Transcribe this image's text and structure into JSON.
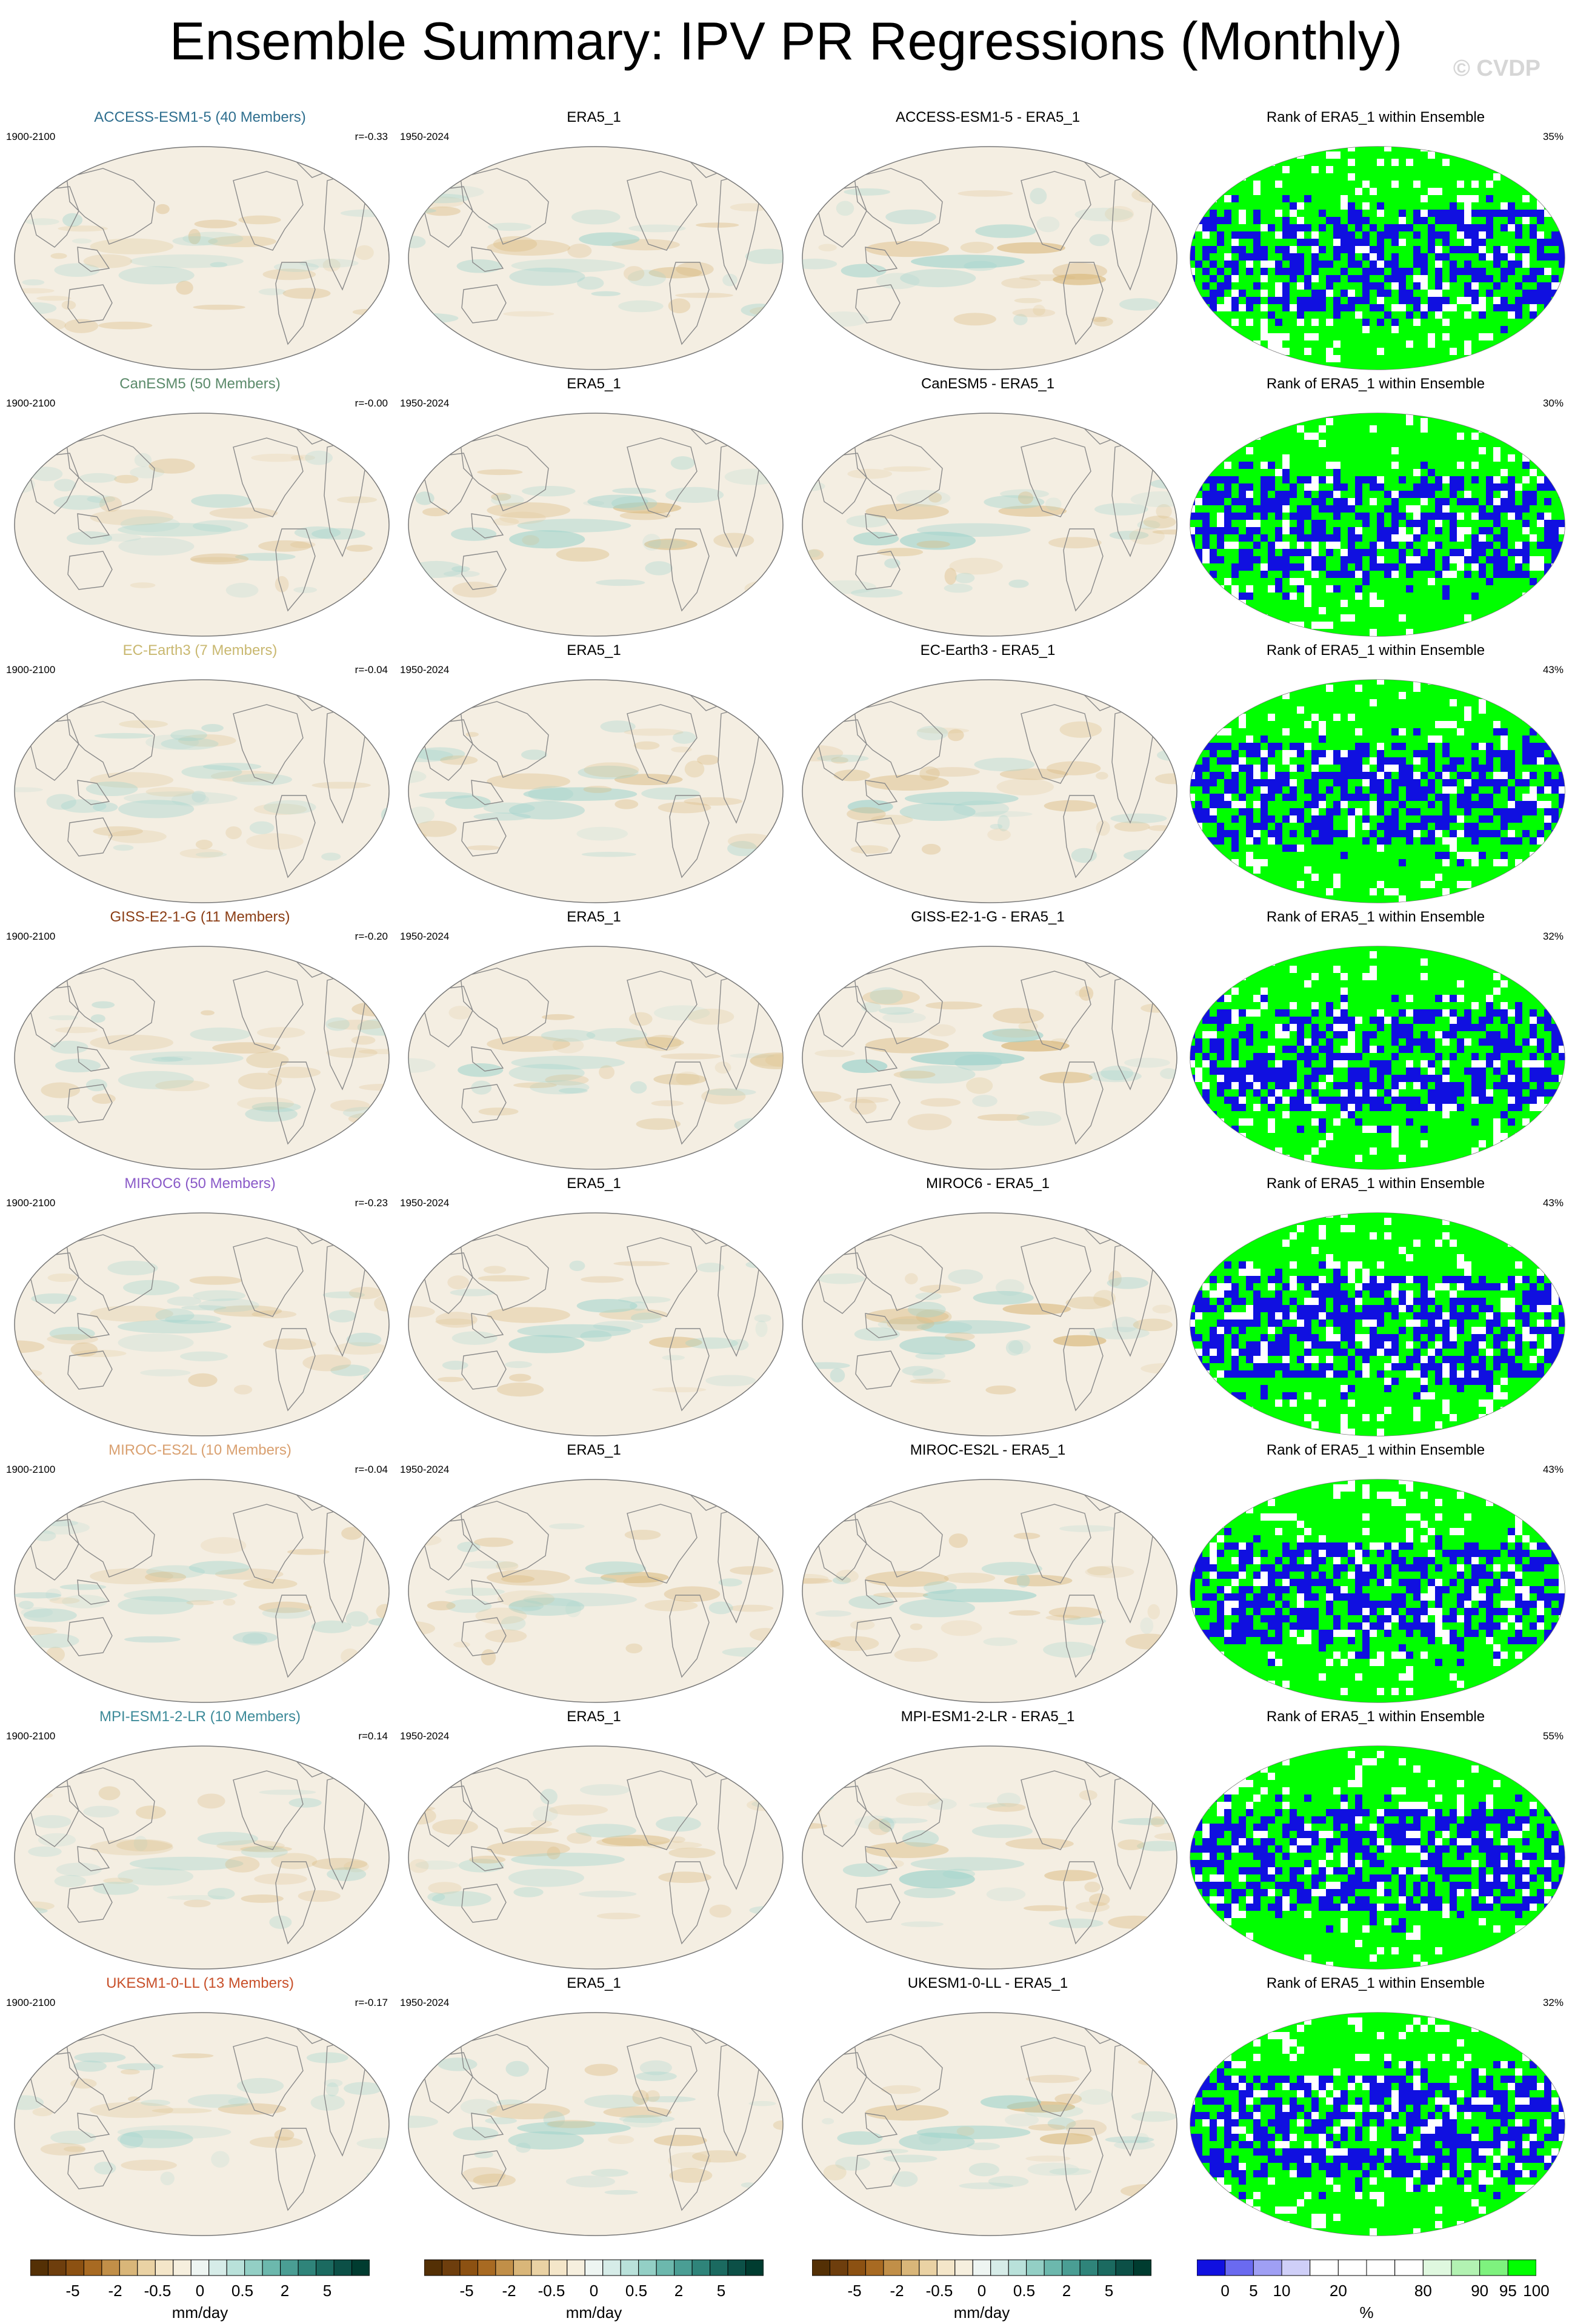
{
  "title": "Ensemble Summary: IPV PR Regressions (Monthly)",
  "watermark": "© CVDP",
  "colors": {
    "ocean": "#f4eee2",
    "land_edge": "#8a8a8a",
    "dry_strong": "#7a4a12",
    "dry": "#d9b87c",
    "wet": "#9fd3cc",
    "wet_strong": "#2b7c74",
    "rank_low": "#1010e0",
    "rank_high": "#00ff00"
  },
  "rows": [
    {
      "model_title": "ACCESS-ESM1-5 (40 Members)",
      "model_color": "#2f6f8f",
      "period": "1900-2100",
      "r": "r=-0.33",
      "obs_title": "ERA5_1",
      "obs_period": "1950-2024",
      "diff_title": "ACCESS-ESM1-5 - ERA5_1",
      "rank_title": "Rank of ERA5_1 within Ensemble",
      "rank_pct": "35%"
    },
    {
      "model_title": "CanESM5 (50 Members)",
      "model_color": "#5b8a6a",
      "period": "1900-2100",
      "r": "r=-0.00",
      "obs_title": "ERA5_1",
      "obs_period": "1950-2024",
      "diff_title": "CanESM5 - ERA5_1",
      "rank_title": "Rank of ERA5_1 within Ensemble",
      "rank_pct": "30%"
    },
    {
      "model_title": "EC-Earth3 (7 Members)",
      "model_color": "#c9b870",
      "period": "1900-2100",
      "r": "r=-0.04",
      "obs_title": "ERA5_1",
      "obs_period": "1950-2024",
      "diff_title": "EC-Earth3 - ERA5_1",
      "rank_title": "Rank of ERA5_1 within Ensemble",
      "rank_pct": "43%"
    },
    {
      "model_title": "GISS-E2-1-G (11 Members)",
      "model_color": "#8a3d14",
      "period": "1900-2100",
      "r": "r=-0.20",
      "obs_title": "ERA5_1",
      "obs_period": "1950-2024",
      "diff_title": "GISS-E2-1-G - ERA5_1",
      "rank_title": "Rank of ERA5_1 within Ensemble",
      "rank_pct": "32%"
    },
    {
      "model_title": "MIROC6 (50 Members)",
      "model_color": "#8a5ac8",
      "period": "1900-2100",
      "r": "r=-0.23",
      "obs_title": "ERA5_1",
      "obs_period": "1950-2024",
      "diff_title": "MIROC6 - ERA5_1",
      "rank_title": "Rank of ERA5_1 within Ensemble",
      "rank_pct": "43%"
    },
    {
      "model_title": "MIROC-ES2L (10 Members)",
      "model_color": "#d9a070",
      "period": "1900-2100",
      "r": "r=-0.04",
      "obs_title": "ERA5_1",
      "obs_period": "1950-2024",
      "diff_title": "MIROC-ES2L - ERA5_1",
      "rank_title": "Rank of ERA5_1 within Ensemble",
      "rank_pct": "43%"
    },
    {
      "model_title": "MPI-ESM1-2-LR (10 Members)",
      "model_color": "#3d8a99",
      "period": "1900-2100",
      "r": "r=0.14",
      "obs_title": "ERA5_1",
      "obs_period": "1950-2024",
      "diff_title": "MPI-ESM1-2-LR - ERA5_1",
      "rank_title": "Rank of ERA5_1 within Ensemble",
      "rank_pct": "55%"
    },
    {
      "model_title": "UKESM1-0-LL (13 Members)",
      "model_color": "#c8502a",
      "period": "1900-2100",
      "r": "r=-0.17",
      "obs_title": "ERA5_1",
      "obs_period": "1950-2024",
      "diff_title": "UKESM1-0-LL - ERA5_1",
      "rank_title": "Rank of ERA5_1 within Ensemble",
      "rank_pct": "32%"
    }
  ],
  "colorbars": [
    {
      "units": "mm/day",
      "ticks": [
        "-5",
        "-2",
        "-0.5",
        "0",
        "0.5",
        "2",
        "5"
      ],
      "swatches": [
        "#543005",
        "#6e3e0d",
        "#8c5112",
        "#a86a22",
        "#c18f48",
        "#d9b679",
        "#ead2a4",
        "#f4e6c9",
        "#f6efde",
        "#eef5f2",
        "#d6ece8",
        "#b9e1da",
        "#93cfc5",
        "#6cb8ad",
        "#4a9e94",
        "#2f847a",
        "#1b6a60",
        "#0c5047",
        "#003c30"
      ]
    },
    {
      "units": "mm/day",
      "ticks": [
        "-5",
        "-2",
        "-0.5",
        "0",
        "0.5",
        "2",
        "5"
      ],
      "swatches": [
        "#543005",
        "#6e3e0d",
        "#8c5112",
        "#a86a22",
        "#c18f48",
        "#d9b679",
        "#ead2a4",
        "#f4e6c9",
        "#f6efde",
        "#eef5f2",
        "#d6ece8",
        "#b9e1da",
        "#93cfc5",
        "#6cb8ad",
        "#4a9e94",
        "#2f847a",
        "#1b6a60",
        "#0c5047",
        "#003c30"
      ]
    },
    {
      "units": "mm/day",
      "ticks": [
        "-5",
        "-2",
        "-0.5",
        "0",
        "0.5",
        "2",
        "5"
      ],
      "swatches": [
        "#543005",
        "#6e3e0d",
        "#8c5112",
        "#a86a22",
        "#c18f48",
        "#d9b679",
        "#ead2a4",
        "#f4e6c9",
        "#f6efde",
        "#eef5f2",
        "#d6ece8",
        "#b9e1da",
        "#93cfc5",
        "#6cb8ad",
        "#4a9e94",
        "#2f847a",
        "#1b6a60",
        "#0c5047",
        "#003c30"
      ]
    },
    {
      "units": "%",
      "ticks": [
        "0",
        "5",
        "10",
        "20",
        "80",
        "90",
        "95",
        "100"
      ],
      "swatches": [
        "#1010e0",
        "#6a6af0",
        "#9f9ff4",
        "#cfcff8",
        "#ffffff",
        "#ffffff",
        "#ffffff",
        "#ffffff",
        "#dff8df",
        "#b2f2b2",
        "#7ef27e",
        "#00ff00"
      ]
    }
  ]
}
